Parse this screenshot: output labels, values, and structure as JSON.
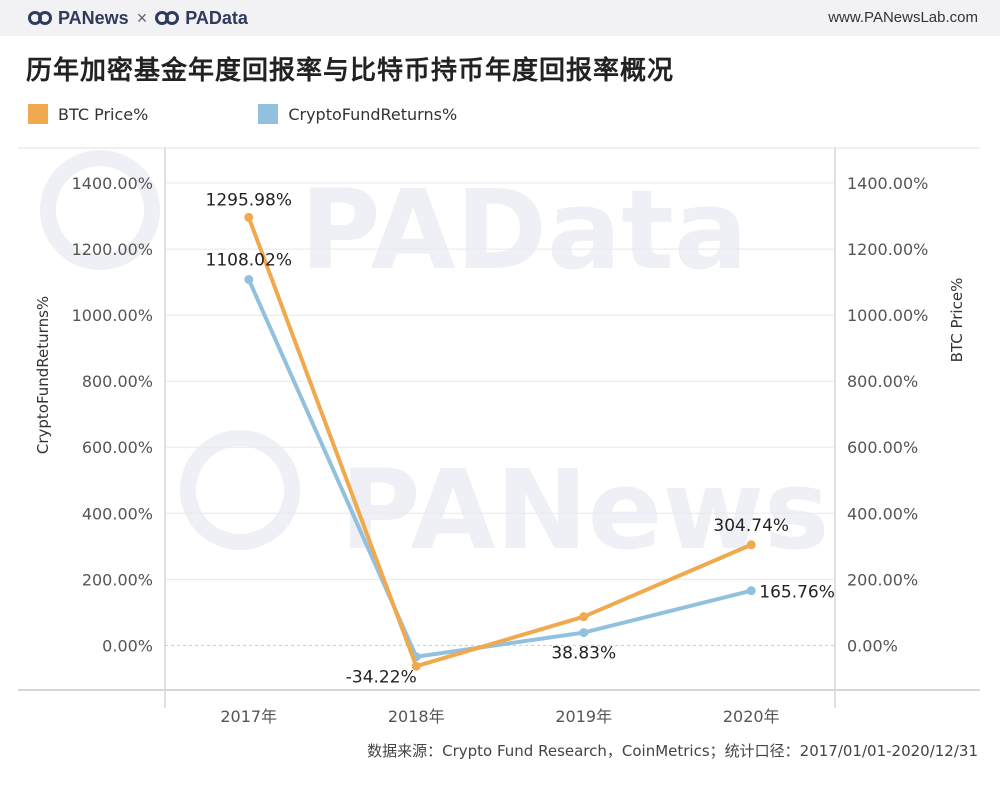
{
  "header": {
    "brand_left": "PANews",
    "brand_sep": "×",
    "brand_right": "PAData",
    "site_url": "www.PANewsLab.com"
  },
  "watermarks": [
    "PAData",
    "PANews"
  ],
  "footer": {
    "source": "数据来源：Crypto Fund Research，CoinMetrics；统计口径：2017/01/01-2020/12/31"
  },
  "colors": {
    "btc": "#f0a94e",
    "fund": "#92c1de",
    "axis_text": "#555555",
    "grid": "#e8e8e8"
  },
  "chart_data": {
    "type": "line",
    "title": "历年加密基金年度回报率与比特币持币年度回报率概况",
    "categories": [
      "2017年",
      "2018年",
      "2019年",
      "2020年"
    ],
    "series": [
      {
        "name": "BTC Price%",
        "axis": "right",
        "values": [
          1295.98,
          -63,
          87,
          304.74
        ],
        "data_labels": [
          "1295.98%",
          "",
          "",
          "304.74%"
        ]
      },
      {
        "name": "CryptoFundReturns%",
        "axis": "left",
        "values": [
          1108.02,
          -34.22,
          38.83,
          165.76
        ],
        "data_labels": [
          "1108.02%",
          "-34.22%",
          "38.83%",
          "165.76%"
        ]
      }
    ],
    "ylabel_left": "CryptoFundReturns%",
    "ylabel_right": "BTC Price%",
    "ylim": [
      -135,
      1500
    ],
    "yticks": [
      0,
      200,
      400,
      600,
      800,
      1000,
      1200,
      1400
    ],
    "ytick_labels": [
      "0.00%",
      "200.00%",
      "400.00%",
      "600.00%",
      "800.00%",
      "1000.00%",
      "1200.00%",
      "1400.00%"
    ],
    "grid": true,
    "legend": "top-left"
  }
}
